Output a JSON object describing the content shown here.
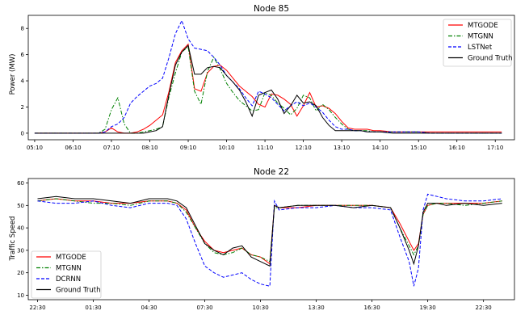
{
  "chart_data": [
    {
      "type": "line",
      "title": "Node 85",
      "xlabel": "",
      "ylabel": "Power (MW)",
      "ylim": [
        -0.5,
        9
      ],
      "xlim": [
        "05:00",
        "17:40"
      ],
      "x_ticks": [
        "05:10",
        "06:10",
        "07:10",
        "08:10",
        "09:10",
        "10:10",
        "11:10",
        "12:10",
        "13:10",
        "14:10",
        "15:10",
        "16:10",
        "17:10"
      ],
      "y_ticks": [
        0,
        2,
        4,
        6,
        8
      ],
      "legend_position": "top-right",
      "x": [
        "05:10",
        "05:30",
        "05:50",
        "06:10",
        "06:30",
        "06:50",
        "07:00",
        "07:10",
        "07:20",
        "07:30",
        "07:40",
        "07:50",
        "08:00",
        "08:10",
        "08:20",
        "08:30",
        "08:40",
        "08:50",
        "09:00",
        "09:10",
        "09:20",
        "09:30",
        "09:40",
        "09:50",
        "10:00",
        "10:10",
        "10:20",
        "10:30",
        "10:40",
        "10:50",
        "11:00",
        "11:10",
        "11:20",
        "11:30",
        "11:40",
        "11:50",
        "12:00",
        "12:10",
        "12:20",
        "12:30",
        "12:40",
        "12:50",
        "13:00",
        "13:10",
        "13:20",
        "13:30",
        "13:40",
        "13:50",
        "14:00",
        "14:10",
        "14:30",
        "14:50",
        "15:10",
        "15:30",
        "15:50",
        "16:10",
        "16:30",
        "16:50",
        "17:10",
        "17:20"
      ],
      "series": [
        {
          "name": "MTGODE",
          "color": "#ff0000",
          "dash": "solid",
          "values": [
            0,
            0,
            0,
            0,
            0,
            0,
            0.1,
            0.4,
            0.1,
            0,
            0,
            0.1,
            0.3,
            0.6,
            1.0,
            1.4,
            3.2,
            5.4,
            6.3,
            6.8,
            3.4,
            3.2,
            4.6,
            5.1,
            5.2,
            4.8,
            4.2,
            3.6,
            3.2,
            2.8,
            2.2,
            2.0,
            3.0,
            2.9,
            2.6,
            2.2,
            1.3,
            2.1,
            3.1,
            2.0,
            2.1,
            1.9,
            1.5,
            0.9,
            0.4,
            0.3,
            0.3,
            0.3,
            0.2,
            0.2,
            0.1,
            0.1,
            0.1,
            0.1,
            0.1,
            0.1,
            0.1,
            0.1,
            0.1,
            0.1
          ]
        },
        {
          "name": "MTGNN",
          "color": "#008000",
          "dash": "dashdot",
          "values": [
            0,
            0,
            0,
            0,
            0,
            0,
            0.3,
            1.8,
            2.7,
            0.7,
            0,
            0,
            0.1,
            0.2,
            0.3,
            0.5,
            2.8,
            4.6,
            6.2,
            6.6,
            3.2,
            2.2,
            4.7,
            5.8,
            4.9,
            3.8,
            3.1,
            2.5,
            2.1,
            1.7,
            1.8,
            3.1,
            2.9,
            2.3,
            1.9,
            1.4,
            1.9,
            2.9,
            2.7,
            1.7,
            2.2,
            1.8,
            1.2,
            0.7,
            0.3,
            0.2,
            0.2,
            0.2,
            0.1,
            0.1,
            0.1,
            0.1,
            0.1,
            0,
            0,
            0,
            0,
            0,
            0,
            0
          ]
        },
        {
          "name": "LSTNet",
          "color": "#0000ff",
          "dash": "dashed",
          "values": [
            0,
            0,
            0,
            0,
            0,
            0,
            0.1,
            0.5,
            0.7,
            1.2,
            2.3,
            2.8,
            3.2,
            3.6,
            3.8,
            4.2,
            5.8,
            7.6,
            8.6,
            7.2,
            6.5,
            6.4,
            6.3,
            5.8,
            5.2,
            4.4,
            3.9,
            3.4,
            2.7,
            2.1,
            3.2,
            3.0,
            2.7,
            2.2,
            1.7,
            2.1,
            2.4,
            2.1,
            2.3,
            2.0,
            1.6,
            1.0,
            0.5,
            0.3,
            0.3,
            0.2,
            0.2,
            0.1,
            0.1,
            0.1,
            0.1,
            0.1,
            0.1,
            0,
            0,
            0,
            0,
            0,
            0,
            0
          ]
        },
        {
          "name": "Ground Truth",
          "color": "#000000",
          "dash": "solid",
          "values": [
            0,
            0,
            0,
            0,
            0,
            0,
            0,
            0,
            0,
            0,
            0,
            0,
            0,
            0.1,
            0.2,
            0.5,
            3.0,
            5.2,
            6.2,
            6.7,
            4.5,
            4.5,
            5.0,
            5.1,
            5.0,
            4.4,
            3.9,
            3.3,
            2.4,
            1.3,
            2.9,
            3.1,
            3.3,
            2.6,
            1.5,
            2.1,
            2.9,
            2.3,
            2.4,
            2.1,
            1.2,
            0.6,
            0.2,
            0.2,
            0.2,
            0.2,
            0.2,
            0.1,
            0.1,
            0.1,
            0,
            0,
            0,
            0,
            0,
            0,
            0,
            0,
            0,
            0
          ]
        }
      ]
    },
    {
      "type": "line",
      "title": "Node 22",
      "xlabel": "",
      "ylabel": "Traffic Speed",
      "ylim": [
        8,
        62
      ],
      "xlim": [
        "22:00",
        "00:10"
      ],
      "x_ticks": [
        "22:30",
        "01:30",
        "04:30",
        "07:30",
        "10:30",
        "13:30",
        "16:30",
        "19:30",
        "22:30"
      ],
      "y_ticks": [
        10,
        20,
        30,
        40,
        50,
        60
      ],
      "legend_position": "bottom-left",
      "x": [
        "22:30",
        "23:30",
        "00:30",
        "01:30",
        "02:30",
        "03:30",
        "04:30",
        "05:30",
        "06:00",
        "06:30",
        "07:00",
        "07:30",
        "08:00",
        "08:30",
        "09:00",
        "09:30",
        "10:00",
        "10:30",
        "11:00",
        "11:15",
        "11:30",
        "12:30",
        "13:30",
        "14:30",
        "15:30",
        "16:30",
        "17:30",
        "18:00",
        "18:30",
        "18:45",
        "19:00",
        "19:15",
        "19:30",
        "20:00",
        "20:30",
        "21:30",
        "22:30",
        "23:30"
      ],
      "series": [
        {
          "name": "MTGODE",
          "color": "#ff0000",
          "dash": "solid",
          "values": [
            52,
            53,
            52,
            52,
            51,
            51,
            52,
            52,
            51,
            48,
            40,
            34,
            30,
            29,
            30,
            31,
            28,
            27,
            24,
            50,
            49,
            49,
            50,
            50,
            50,
            50,
            49,
            42,
            34,
            30,
            33,
            46,
            50,
            51,
            51,
            51,
            51,
            52
          ]
        },
        {
          "name": "MTGNN",
          "color": "#008000",
          "dash": "dashdot",
          "values": [
            52,
            53,
            52,
            51,
            51,
            50,
            52,
            52,
            51,
            47,
            40,
            33,
            29,
            28,
            29,
            31,
            28,
            27,
            25,
            49,
            49,
            50,
            50,
            50,
            50,
            50,
            49,
            40,
            32,
            28,
            32,
            46,
            50,
            51,
            51,
            50,
            51,
            52
          ]
        },
        {
          "name": "DCRNN",
          "color": "#0000ff",
          "dash": "dashed",
          "values": [
            52,
            51,
            51,
            52,
            50,
            49,
            51,
            51,
            50,
            44,
            33,
            23,
            20,
            18,
            19,
            20,
            17,
            15,
            14,
            52,
            48,
            49,
            49,
            50,
            49,
            49,
            48,
            36,
            25,
            14,
            22,
            48,
            55,
            54,
            53,
            52,
            52,
            53
          ]
        },
        {
          "name": "Ground Truth",
          "color": "#000000",
          "dash": "solid",
          "values": [
            53,
            54,
            53,
            53,
            52,
            51,
            53,
            53,
            52,
            49,
            41,
            33,
            30,
            28,
            31,
            32,
            27,
            25,
            23,
            50,
            49,
            50,
            50,
            50,
            49,
            50,
            49,
            40,
            30,
            24,
            32,
            47,
            51,
            51,
            50,
            51,
            50,
            51
          ]
        }
      ]
    }
  ]
}
